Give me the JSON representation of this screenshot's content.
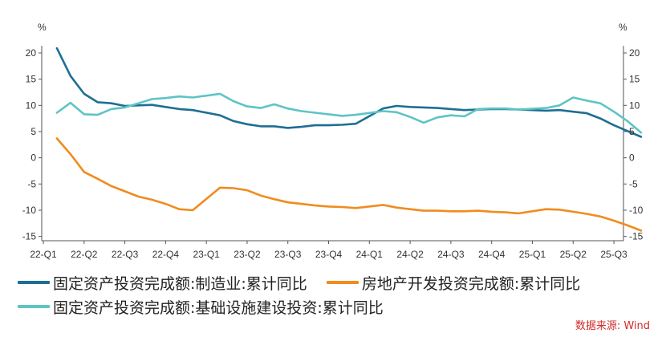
{
  "chart_data": {
    "type": "line",
    "unit_left": "%",
    "unit_right": "%",
    "categories": [
      "22-Q1",
      "22-Q2",
      "22-Q3",
      "22-Q4",
      "23-Q1",
      "23-Q2",
      "23-Q3",
      "23-Q4",
      "24-Q1",
      "24-Q2",
      "24-Q3",
      "24-Q4",
      "25-Q1",
      "25-Q2",
      "25-Q3"
    ],
    "x_labels": [
      "22-Q1",
      "22-Q2",
      "22-Q3",
      "22-Q4",
      "23-Q1",
      "23-Q2",
      "23-Q3",
      "23-Q4",
      "24-Q1",
      "24-Q2",
      "24-Q3",
      "24-Q4",
      "25-Q1",
      "25-Q2",
      "25-Q3"
    ],
    "ylim": [
      -15,
      20
    ],
    "yticks": [
      20,
      15,
      10,
      5,
      0,
      -5,
      -10,
      -15
    ],
    "grid": false,
    "legend_position": "bottom",
    "series": [
      {
        "name": "固定资产投资完成额:制造业:累计同比",
        "color": "#1f6e94",
        "x": [
          "2022-02",
          "2022-03",
          "2022-04",
          "2022-05",
          "2022-06",
          "2022-07",
          "2022-08",
          "2022-09",
          "2022-10",
          "2022-11",
          "2022-12",
          "2023-02",
          "2023-03",
          "2023-04",
          "2023-05",
          "2023-06",
          "2023-07",
          "2023-08",
          "2023-09",
          "2023-10",
          "2023-11",
          "2023-12",
          "2024-02",
          "2024-03",
          "2024-04",
          "2024-05",
          "2024-06",
          "2024-07",
          "2024-08",
          "2024-09",
          "2024-10",
          "2024-11",
          "2024-12",
          "2025-02",
          "2025-03",
          "2025-04",
          "2025-05",
          "2025-06",
          "2025-07",
          "2025-08",
          "2025-09"
        ],
        "values": [
          20.9,
          15.6,
          12.2,
          10.6,
          10.4,
          9.9,
          10.0,
          10.1,
          9.7,
          9.3,
          9.1,
          8.1,
          7.0,
          6.4,
          6.0,
          6.0,
          5.7,
          5.9,
          6.2,
          6.2,
          6.3,
          6.5,
          9.4,
          9.9,
          9.7,
          9.6,
          9.5,
          9.3,
          9.1,
          9.2,
          9.3,
          9.3,
          9.2,
          9.0,
          9.1,
          8.8,
          8.5,
          7.5,
          6.2,
          5.1,
          4.0
        ]
      },
      {
        "name": "房地产开发投资完成额:累计同比",
        "color": "#f08c1e",
        "x": [
          "2022-02",
          "2022-03",
          "2022-04",
          "2022-05",
          "2022-06",
          "2022-07",
          "2022-08",
          "2022-09",
          "2022-10",
          "2022-11",
          "2022-12",
          "2023-02",
          "2023-03",
          "2023-04",
          "2023-05",
          "2023-06",
          "2023-07",
          "2023-08",
          "2023-09",
          "2023-10",
          "2023-11",
          "2023-12",
          "2024-02",
          "2024-03",
          "2024-04",
          "2024-05",
          "2024-06",
          "2024-07",
          "2024-08",
          "2024-09",
          "2024-10",
          "2024-11",
          "2024-12",
          "2025-02",
          "2025-03",
          "2025-04",
          "2025-05",
          "2025-06",
          "2025-07",
          "2025-08",
          "2025-09"
        ],
        "values": [
          3.7,
          0.7,
          -2.7,
          -4.0,
          -5.4,
          -6.4,
          -7.4,
          -8.0,
          -8.8,
          -9.8,
          -10.0,
          -5.7,
          -5.8,
          -6.2,
          -7.2,
          -7.9,
          -8.5,
          -8.8,
          -9.1,
          -9.3,
          -9.4,
          -9.6,
          -9.0,
          -9.5,
          -9.8,
          -10.1,
          -10.1,
          -10.2,
          -10.2,
          -10.1,
          -10.3,
          -10.4,
          -10.6,
          -9.8,
          -9.9,
          -10.3,
          -10.7,
          -11.2,
          -12.0,
          -12.9,
          -13.9
        ]
      },
      {
        "name": "固定资产投资完成额:基础设施建设投资:累计同比",
        "color": "#5ec4c4",
        "x": [
          "2022-02",
          "2022-03",
          "2022-04",
          "2022-05",
          "2022-06",
          "2022-07",
          "2022-08",
          "2022-09",
          "2022-10",
          "2022-11",
          "2022-12",
          "2023-02",
          "2023-03",
          "2023-04",
          "2023-05",
          "2023-06",
          "2023-07",
          "2023-08",
          "2023-09",
          "2023-10",
          "2023-11",
          "2023-12",
          "2024-02",
          "2024-03",
          "2024-04",
          "2024-05",
          "2024-06",
          "2024-07",
          "2024-08",
          "2024-09",
          "2024-10",
          "2024-11",
          "2024-12",
          "2025-02",
          "2025-03",
          "2025-04",
          "2025-05",
          "2025-06",
          "2025-07",
          "2025-08",
          "2025-09"
        ],
        "values": [
          8.6,
          10.5,
          8.3,
          8.2,
          9.3,
          9.6,
          10.4,
          11.2,
          11.4,
          11.7,
          11.5,
          12.2,
          10.8,
          9.8,
          9.5,
          10.2,
          9.4,
          8.9,
          8.6,
          8.3,
          8.0,
          8.2,
          8.9,
          8.7,
          7.8,
          6.7,
          7.7,
          8.1,
          7.9,
          9.3,
          9.4,
          9.4,
          9.2,
          9.5,
          10.0,
          11.5,
          10.9,
          10.4,
          8.8,
          7.0,
          4.8
        ]
      }
    ]
  },
  "legend": {
    "items": [
      {
        "label": "固定资产投资完成额:制造业:累计同比",
        "color": "#1f6e94"
      },
      {
        "label": "房地产开发投资完成额:累计同比",
        "color": "#f08c1e"
      },
      {
        "label": "固定资产投资完成额:基础设施建设投资:累计同比",
        "color": "#5ec4c4"
      }
    ]
  },
  "source_note": "数据来源: Wind"
}
